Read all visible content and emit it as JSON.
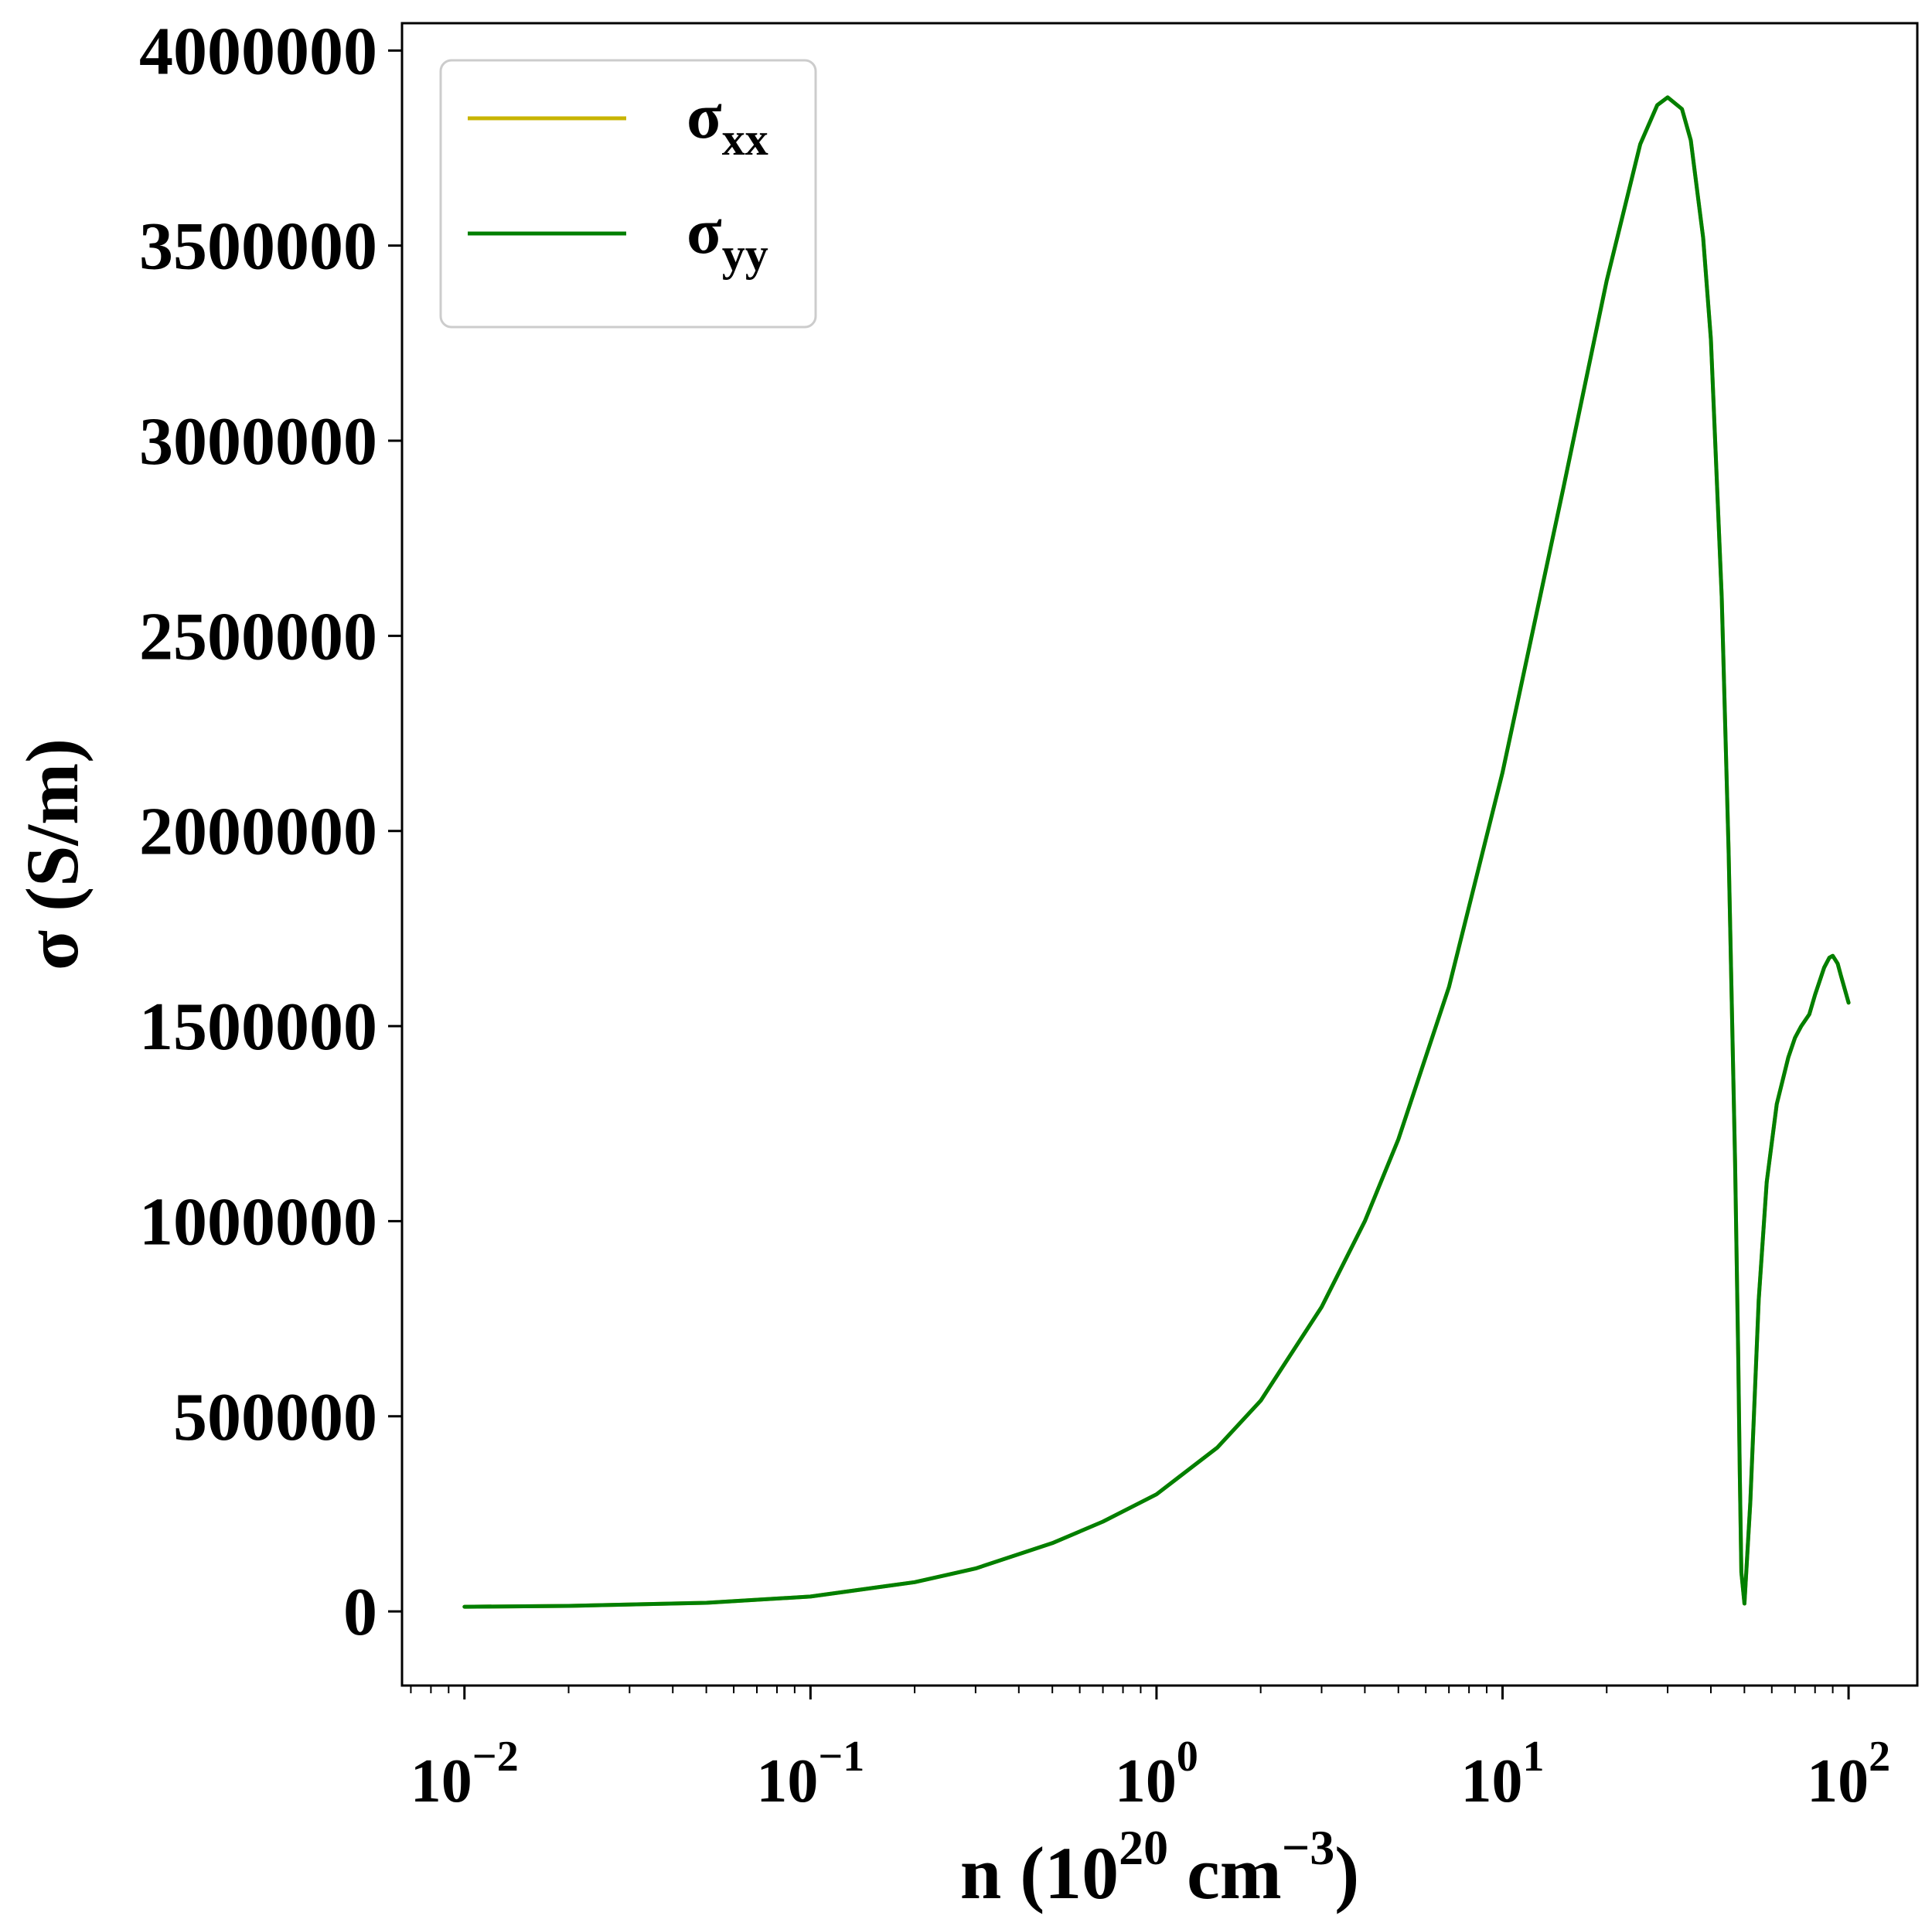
{
  "chart_data": {
    "type": "line",
    "xscale": "log",
    "xlim": [
      0.0066,
      158
    ],
    "ylim": [
      -190000,
      4070000
    ],
    "x_ticks": [
      {
        "base": "10",
        "exp": "−2"
      },
      {
        "base": "10",
        "exp": "−1"
      },
      {
        "base": "10",
        "exp": "0"
      },
      {
        "base": "10",
        "exp": "1"
      },
      {
        "base": "10",
        "exp": "2"
      }
    ],
    "x_tick_values": [
      0.01,
      0.1,
      1,
      10,
      100
    ],
    "y_ticks": [
      "0",
      "500000",
      "1000000",
      "1500000",
      "2000000",
      "2500000",
      "3000000",
      "3500000",
      "4000000"
    ],
    "y_tick_values": [
      0,
      500000,
      1000000,
      1500000,
      2000000,
      2500000,
      3000000,
      3500000,
      4000000
    ],
    "xlabel": {
      "pre": "n (10",
      "sup1": "20",
      "mid": " cm",
      "sup2": "−3",
      "post": ")"
    },
    "ylabel": "σ (S/m)",
    "legend_position": "top-left",
    "grid": false,
    "series": [
      {
        "name": "σxx",
        "label_main": "σ",
        "label_sub": "xx",
        "color": "#c8b400",
        "x": [
          0.01,
          0.02,
          0.05,
          0.1,
          0.2,
          0.3,
          0.5,
          0.7,
          1,
          1.5,
          2,
          3,
          4,
          5,
          7,
          10,
          15,
          20,
          25,
          28,
          30,
          33,
          35,
          38,
          40,
          43,
          45,
          47,
          48,
          48.5,
          49,
          50,
          52,
          55,
          58,
          62,
          67,
          70,
          73,
          77,
          80,
          85,
          88,
          90,
          93,
          95,
          100
        ],
        "y": [
          12000,
          14000,
          22000,
          38000,
          75000,
          110000,
          175000,
          230000,
          300000,
          420000,
          540000,
          780000,
          1000000,
          1210000,
          1600000,
          2150000,
          2880000,
          3410000,
          3760000,
          3860000,
          3880000,
          3850000,
          3770000,
          3520000,
          3260000,
          2600000,
          1950000,
          1150000,
          650000,
          350000,
          100000,
          20000,
          280000,
          800000,
          1100000,
          1300000,
          1420000,
          1470000,
          1500000,
          1530000,
          1580000,
          1650000,
          1675000,
          1680000,
          1660000,
          1630000,
          1560000
        ]
      },
      {
        "name": "σyy",
        "label_main": "σ",
        "label_sub": "yy",
        "color": "#007f00",
        "x": [
          0.01,
          0.02,
          0.05,
          0.1,
          0.2,
          0.3,
          0.5,
          0.7,
          1,
          1.5,
          2,
          3,
          4,
          5,
          7,
          10,
          15,
          20,
          25,
          28,
          30,
          33,
          35,
          38,
          40,
          43,
          45,
          47,
          48,
          48.5,
          49,
          50,
          52,
          55,
          58,
          62,
          67,
          70,
          73,
          77,
          80,
          85,
          88,
          90,
          93,
          95,
          100
        ],
        "y": [
          12000,
          14000,
          22000,
          38000,
          75000,
          110000,
          175000,
          230000,
          300000,
          420000,
          540000,
          780000,
          1000000,
          1210000,
          1600000,
          2150000,
          2880000,
          3410000,
          3760000,
          3860000,
          3880000,
          3850000,
          3770000,
          3520000,
          3260000,
          2600000,
          1950000,
          1150000,
          650000,
          350000,
          100000,
          20000,
          280000,
          800000,
          1100000,
          1300000,
          1420000,
          1470000,
          1500000,
          1530000,
          1580000,
          1650000,
          1675000,
          1680000,
          1660000,
          1630000,
          1560000
        ]
      }
    ]
  }
}
